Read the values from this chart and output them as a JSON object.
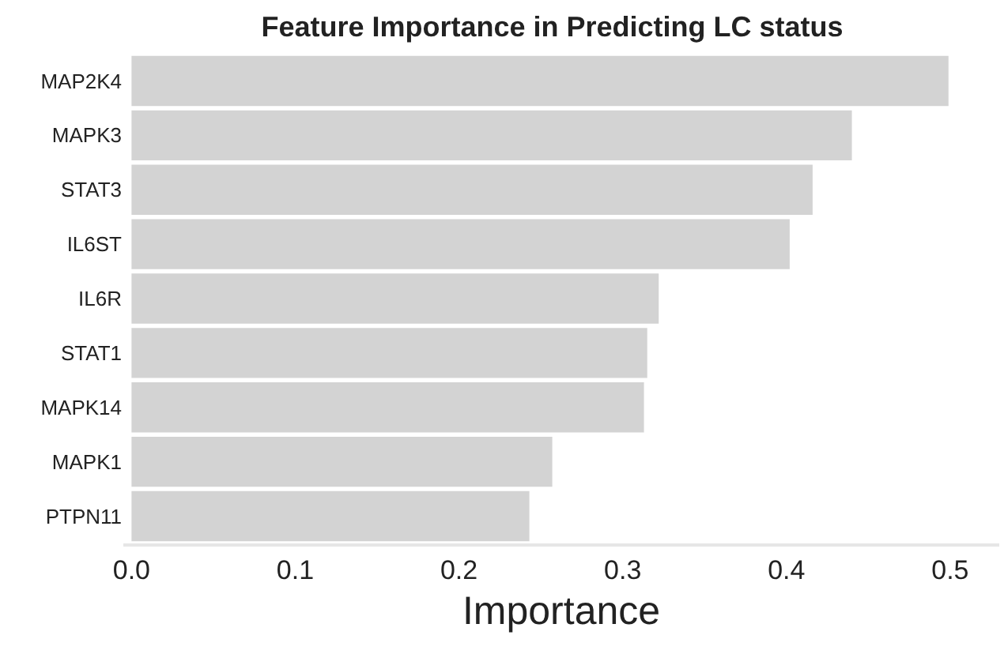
{
  "chart_data": {
    "type": "bar",
    "orientation": "horizontal",
    "title": "Feature Importance in Predicting LC status",
    "xlabel": "Importance",
    "categories": [
      "MAP2K4",
      "MAPK3",
      "STAT3",
      "IL6ST",
      "IL6R",
      "STAT1",
      "MAPK14",
      "MAPK1",
      "PTPN11"
    ],
    "values": [
      0.499,
      0.44,
      0.416,
      0.402,
      0.322,
      0.315,
      0.313,
      0.257,
      0.243
    ],
    "color": "#d3d3d3",
    "xlim": [
      -0.005,
      0.53
    ],
    "xticks": [
      {
        "value": 0,
        "label": "0.0"
      },
      0.1,
      0.2,
      0.3,
      0.4,
      0.5
    ],
    "grid": false
  }
}
